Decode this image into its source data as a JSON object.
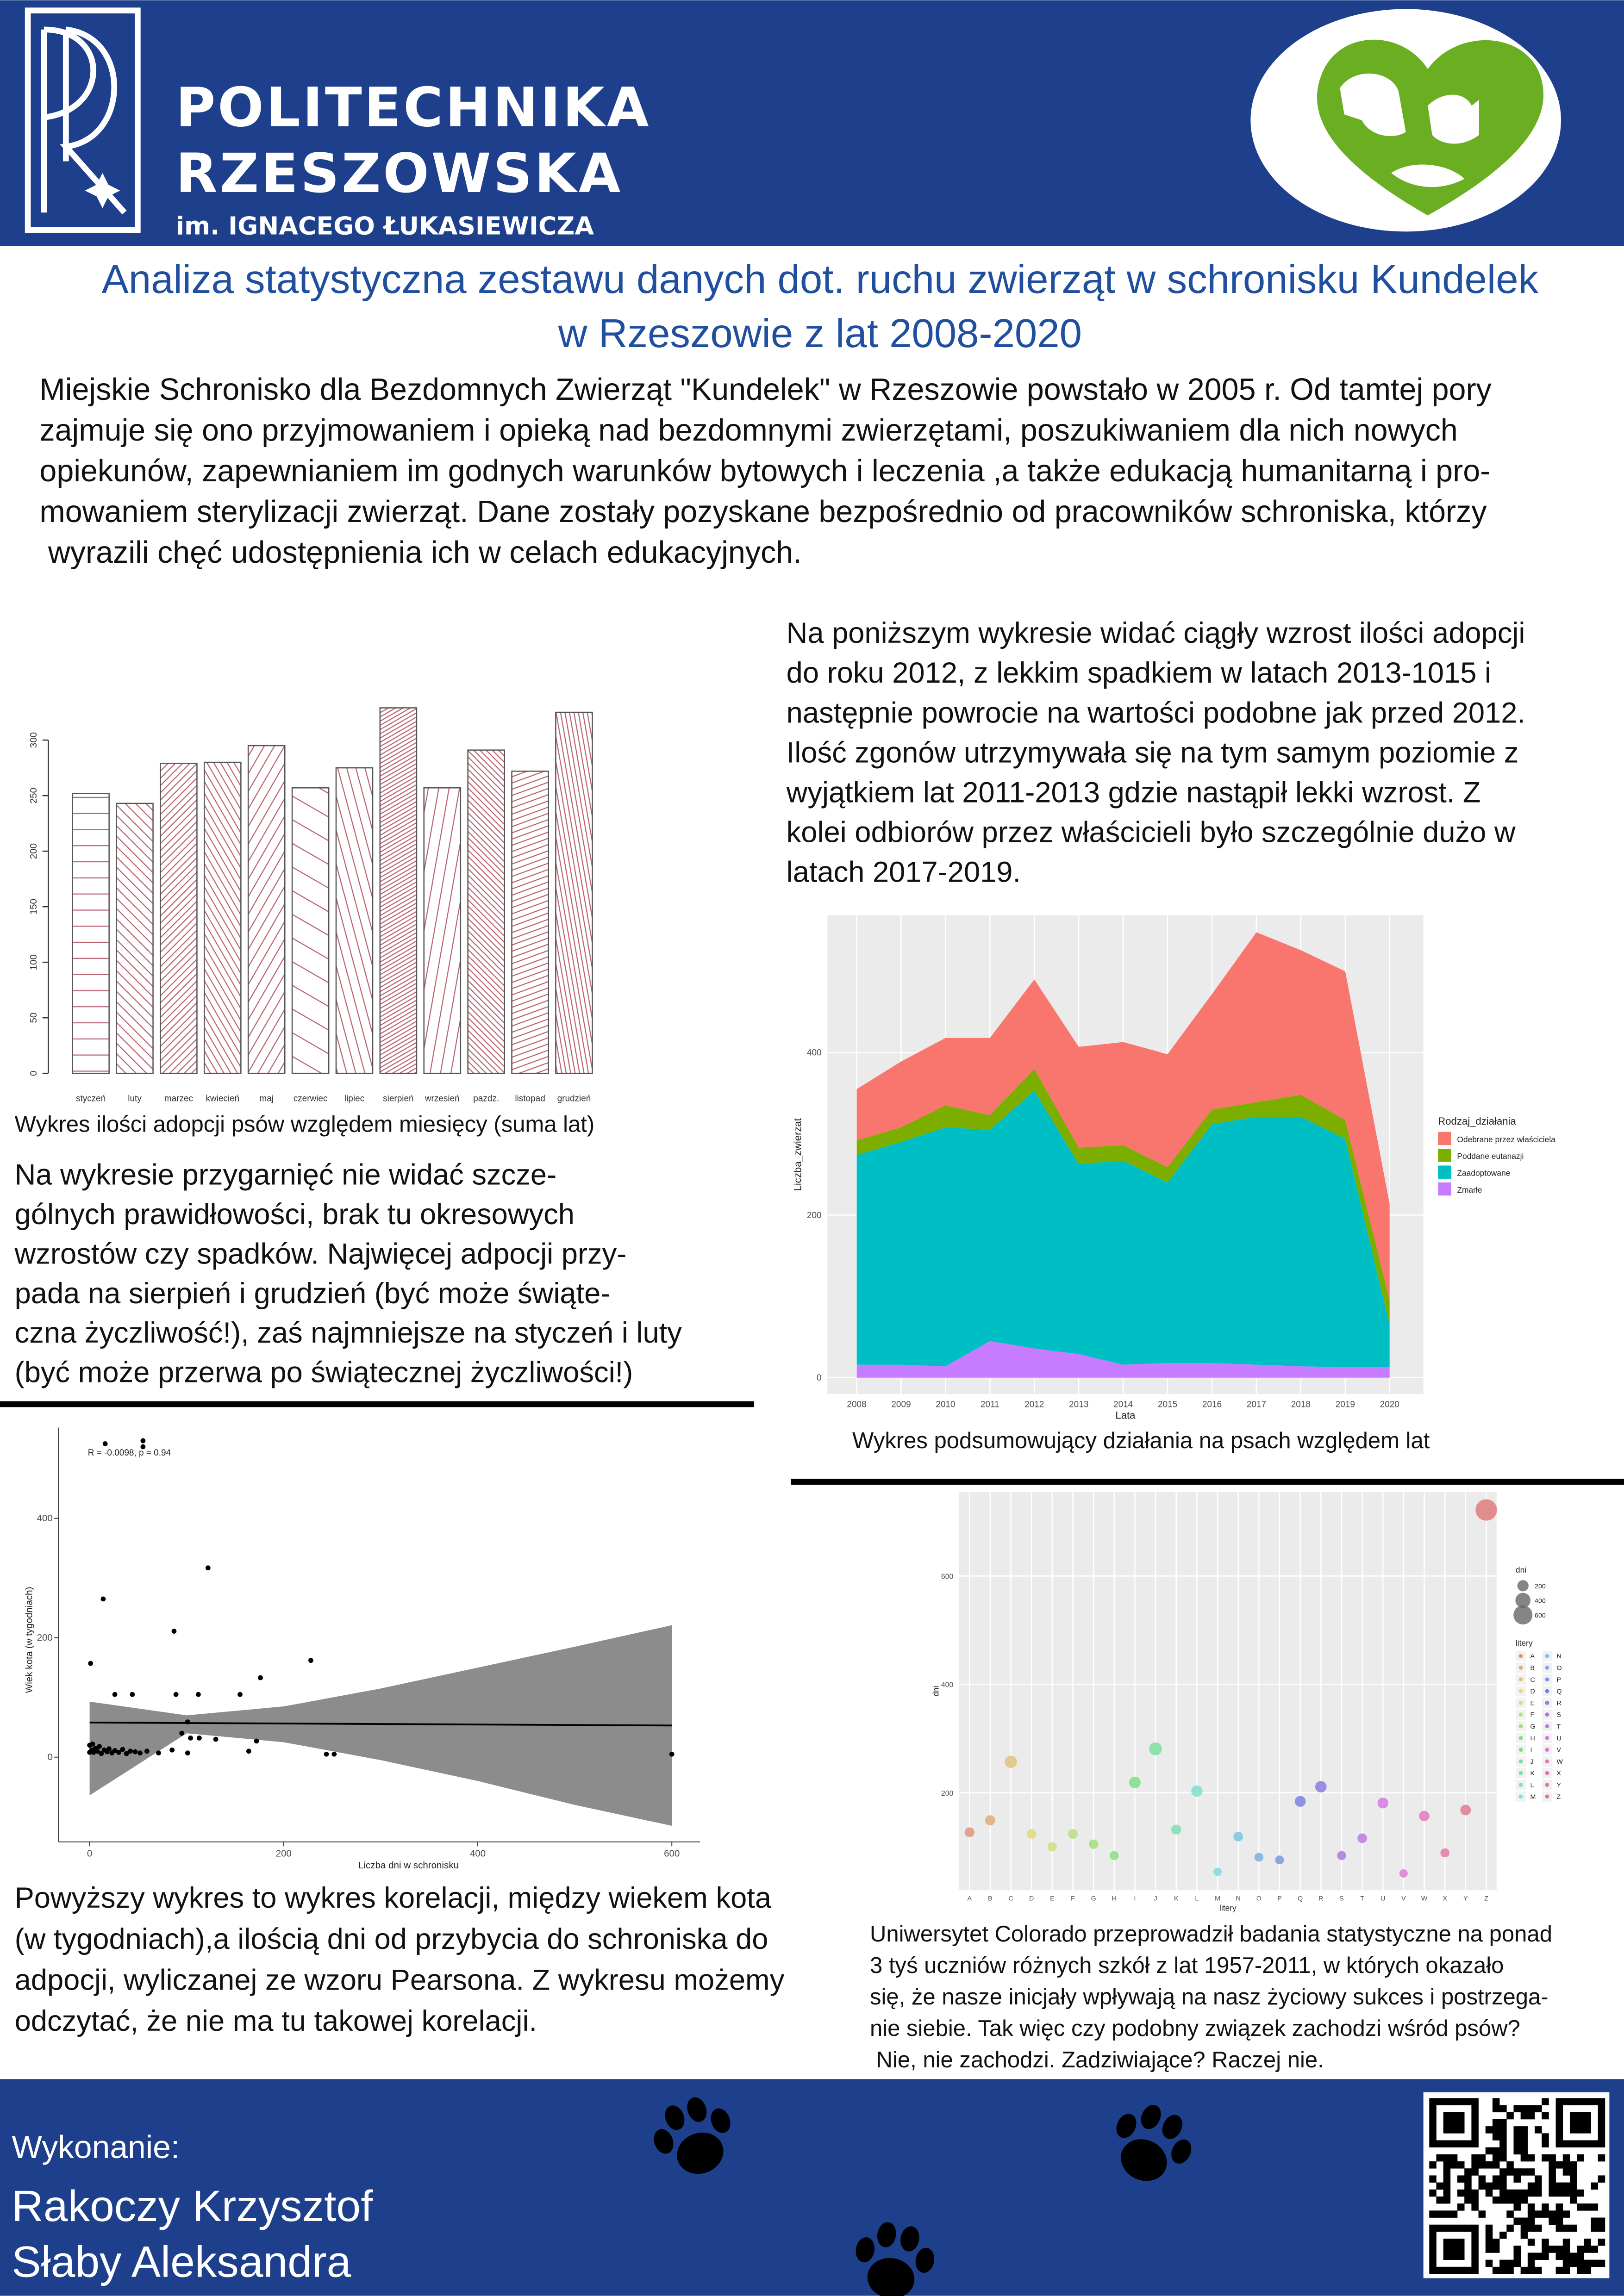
{
  "header": {
    "university": [
      "POLITECHNIKA",
      "RZESZOWSKA"
    ],
    "subtitle": "im. IGNACEGO ŁUKASIEWICZA"
  },
  "title": [
    "Analiza statystyczna zestawu danych dot. ruchu zwierząt w schronisku Kundelek",
    "w Rzeszowie z lat 2008-2020"
  ],
  "intro": [
    "Miejskie Schronisko dla Bezdomnych Zwierząt \"Kundelek\" w Rzeszowie powstało w 2005 r. Od tamtej pory",
    "zajmuje się ono przyjmowaniem i opieką nad bezdomnymi zwierzętami, poszukiwaniem dla nich nowych",
    "opiekunów, zapewnianiem im godnych warunków bytowych i leczenia ,a także edukacją humanitarną i pro-",
    "mowaniem sterylizacji zwierząt. Dane zostały pozyskane bezpośrednio od pracowników schroniska, którzy",
    " wyrazili chęć udostępnienia ich w celach edukacyjnych."
  ],
  "years_text": [
    "Na poniższym wykresie widać ciągły wzrost ilości adopcji",
    "do roku 2012, z lekkim spadkiem w latach 2013-1015 i",
    "następnie powrocie na wartości podobne jak przed 2012.",
    "Ilość zgonów utrzymywała się na tym samym poziomie z",
    "wyjątkiem lat 2011-2013 gdzie nastąpił lekki wzrost. Z",
    "kolei odbiorów przez właścicieli było szczególnie dużo w",
    "latach 2017-2019."
  ],
  "months_text": [
    "Na wykresie przygarnięć nie widać szcze-",
    "gólnych prawidłowości, brak tu okresowych",
    "wzrostów czy spadków. Najwięcej adpocji przy-",
    "pada na sierpień i grudzień (być może świąte-",
    "czna życzliwość!), zaś najmniejsze na styczeń i luty",
    "(być może przerwa po świątecznej życzliwości!)"
  ],
  "correlation_text": [
    "Powyższy wykres to wykres korelacji, między wiekem kota",
    "(w tygodniach),a ilością dni od przybycia do schroniska do",
    "adpocji, wyliczanej ze wzoru Pearsona. Z wykresu możemy",
    "odczytać, że nie ma tu takowej korelacji."
  ],
  "initials_text": [
    "Uniwersytet Colorado przeprowadził badania statystyczne na ponad",
    "3 tyś uczniów różnych szkół z lat 1957-2011, w których okazało",
    "się, że nasze inicjały wpływają na nasz życiowy sukces i postrzega-",
    "nie siebie. Tak więc czy podobny związek zachodzi wśród psów?",
    " Nie, nie zachodzi. Zadziwiające? Raczej nie."
  ],
  "footer": {
    "label": "Wykonanie:",
    "authors": [
      "Rakoczy Krzysztof",
      "Słaby Aleksandra"
    ]
  },
  "chart_data": [
    {
      "type": "bar",
      "caption": "Wykres ilości adopcji psów względem miesięcy (suma lat)",
      "categories": [
        "styczeń",
        "luty",
        "marzec",
        "kwiecień",
        "maj",
        "czerwiec",
        "lipiec",
        "sierpień",
        "wrzesień",
        "pazdz.",
        "listopad",
        "grudzień"
      ],
      "values": [
        252,
        243,
        279,
        280,
        295,
        257,
        275,
        329,
        257,
        291,
        272,
        325
      ],
      "color": "#b8606e",
      "ylim": [
        0,
        340
      ],
      "yticks": [
        0,
        50,
        100,
        150,
        200,
        250,
        300
      ]
    },
    {
      "type": "area",
      "stacked": true,
      "caption": "Wykres podsumowujący działania na psach względem lat",
      "x": [
        2008,
        2009,
        2010,
        2011,
        2012,
        2013,
        2014,
        2015,
        2016,
        2017,
        2018,
        2019,
        2020
      ],
      "xlim": [
        2007.34,
        2020.76
      ],
      "xticks": [
        2008,
        2009,
        2010,
        2011,
        2012,
        2013,
        2014,
        2015,
        2016,
        2017,
        2018,
        2019,
        2020
      ],
      "ylim": [
        -20,
        569
      ],
      "yticks": [
        0,
        200,
        400
      ],
      "grid": true,
      "x_label": "Lata",
      "y_label": "Liczba_zwierzat",
      "legend_title": "Rodzaj_działania",
      "legend": "right",
      "series": [
        {
          "name": "Odebrane przez właściciela",
          "color": "#F8766D",
          "values": [
            63,
            81,
            83,
            95,
            110,
            124,
            127,
            139,
            142,
            209,
            178,
            183,
            119
          ]
        },
        {
          "name": "Poddane eutanazji",
          "color": "#7CAE00",
          "values": [
            18,
            18,
            27,
            18,
            27,
            20,
            19,
            19,
            18,
            18,
            27,
            23,
            30
          ]
        },
        {
          "name": "Zaadoptowane",
          "color": "#00BFC4",
          "values": [
            258,
            274,
            294,
            260,
            317,
            234,
            251,
            222,
            294,
            305,
            307,
            281,
            52
          ]
        },
        {
          "name": "Zmarłe",
          "color": "#C77CFF",
          "values": [
            16,
            16,
            14,
            45,
            36,
            29,
            16,
            18,
            18,
            16,
            14,
            13,
            13
          ]
        }
      ]
    },
    {
      "type": "scatter",
      "annotation": "R = -0.0098, p = 0.94",
      "x": [
        1,
        14,
        16,
        55,
        55,
        122,
        87,
        26,
        44,
        89,
        112,
        155,
        176,
        228,
        101,
        104,
        113,
        172,
        244,
        252,
        600,
        164,
        59,
        71,
        101,
        0,
        2,
        4,
        6,
        8,
        10,
        12,
        15,
        18,
        20,
        23,
        26,
        30,
        34,
        38,
        42,
        47,
        52,
        85,
        130,
        95,
        0,
        3
      ],
      "values": [
        157,
        265,
        525,
        530,
        520,
        317,
        211,
        105,
        105,
        105,
        105,
        105,
        133,
        162,
        59,
        32,
        32,
        27,
        5,
        5,
        5,
        10,
        10,
        7,
        7,
        20,
        12,
        8,
        15,
        10,
        18,
        6,
        12,
        9,
        14,
        7,
        11,
        8,
        13,
        6,
        10,
        9,
        7,
        12,
        30,
        40,
        8,
        22
      ],
      "fit": {
        "x": [
          0,
          600
        ],
        "y": [
          58,
          53
        ]
      },
      "band": {
        "x": [
          0,
          100,
          200,
          300,
          400,
          500,
          600
        ],
        "upper": [
          93,
          70,
          85,
          115,
          150,
          185,
          221
        ],
        "lower": [
          -64,
          40,
          25,
          -5,
          -40,
          -80,
          -115
        ]
      },
      "color": "#000000",
      "band_color": "#8c8c8c",
      "xlim": [
        -32,
        629
      ],
      "xticks": [
        0,
        200,
        400,
        600
      ],
      "ylim": [
        -142,
        552
      ],
      "yticks": [
        0,
        200,
        400
      ],
      "x_label": "Liczba dni w schronisku",
      "y_label": "Wiek kota (w tygodniach)"
    },
    {
      "type": "bubble",
      "categories": [
        "A",
        "B",
        "C",
        "D",
        "E",
        "F",
        "G",
        "H",
        "I",
        "J",
        "K",
        "L",
        "M",
        "N",
        "O",
        "P",
        "Q",
        "R",
        "S",
        "T",
        "U",
        "V",
        "W",
        "X",
        "Y",
        "Z"
      ],
      "values": [
        127,
        149,
        257,
        124,
        100,
        124,
        105,
        84,
        219,
        281,
        132,
        203,
        54,
        119,
        81,
        76,
        184,
        211,
        84,
        116,
        181,
        51,
        157,
        89,
        168,
        722
      ],
      "ylim": [
        20,
        755
      ],
      "yticks": [
        200,
        400,
        600
      ],
      "grid": true,
      "size_legend": [
        200,
        400,
        600
      ],
      "size_title": "dni",
      "color_title": "litery",
      "x_label": "litery",
      "y_label": "dni"
    }
  ]
}
